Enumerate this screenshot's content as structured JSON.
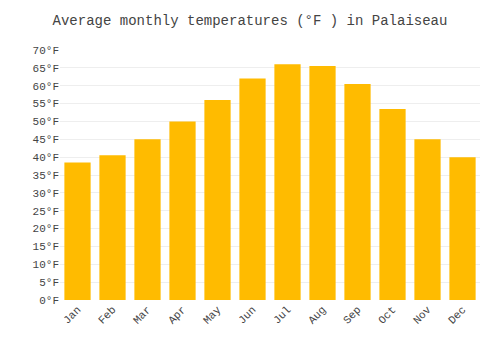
{
  "chart_data": {
    "type": "bar",
    "title": "Average monthly temperatures (°F ) in Palaiseau",
    "categories": [
      "Jan",
      "Feb",
      "Mar",
      "Apr",
      "May",
      "Jun",
      "Jul",
      "Aug",
      "Sep",
      "Oct",
      "Nov",
      "Dec"
    ],
    "values": [
      38.5,
      40.5,
      45.0,
      50.0,
      56.0,
      62.0,
      66.0,
      65.5,
      60.5,
      53.5,
      45.0,
      40.0
    ],
    "color": "#FFBB00",
    "ylim": [
      0,
      70
    ],
    "yticks": [
      {
        "value": 0,
        "label": "0°F"
      },
      {
        "value": 5,
        "label": "5°F"
      },
      {
        "value": 10,
        "label": "10°F"
      },
      {
        "value": 15,
        "label": "15°F"
      },
      {
        "value": 20,
        "label": "20°F"
      },
      {
        "value": 25,
        "label": "25°F"
      },
      {
        "value": 30,
        "label": "30°F"
      },
      {
        "value": 35,
        "label": "35°F"
      },
      {
        "value": 40,
        "label": "40°F"
      },
      {
        "value": 45,
        "label": "45°F"
      },
      {
        "value": 50,
        "label": "50°F"
      },
      {
        "value": 55,
        "label": "55°F"
      },
      {
        "value": 60,
        "label": "60°F"
      },
      {
        "value": 65,
        "label": "65°F"
      },
      {
        "value": 70,
        "label": "70°F"
      }
    ],
    "grid": true
  }
}
